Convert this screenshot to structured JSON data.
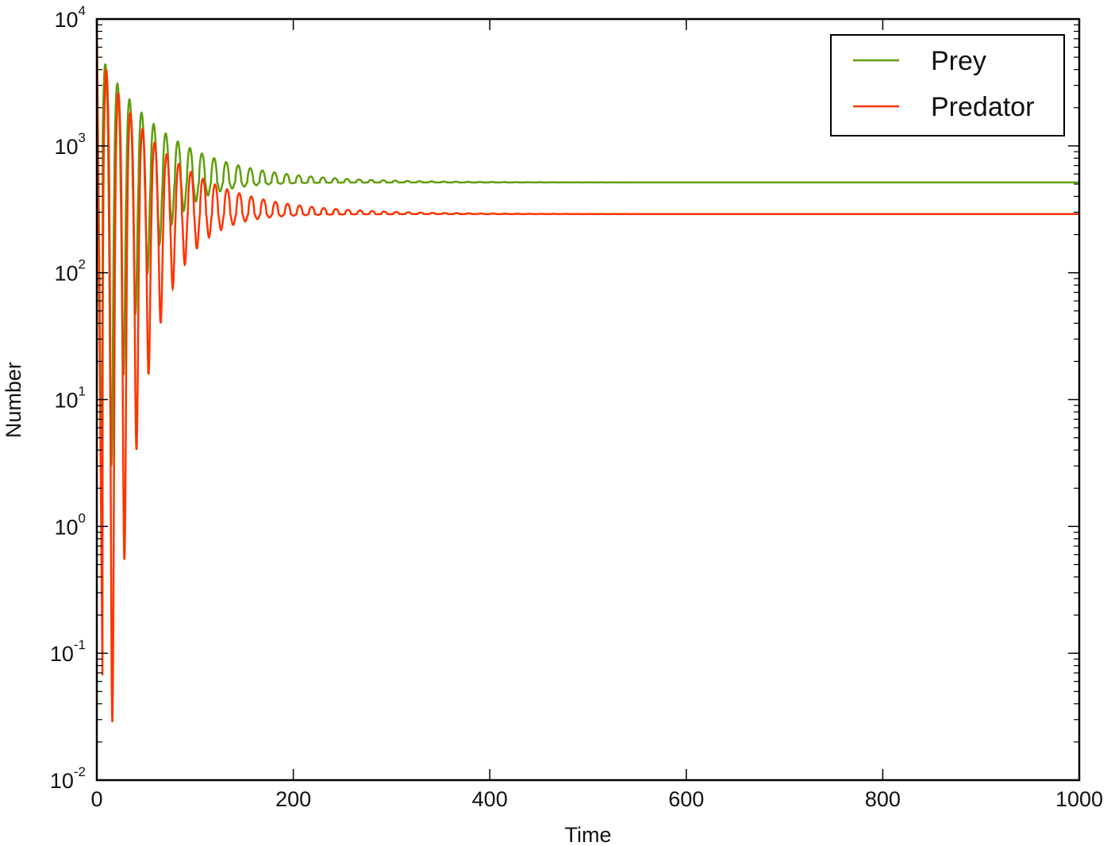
{
  "chart_data": {
    "type": "line",
    "title": "",
    "xlabel": "Time",
    "ylabel": "Number",
    "xlim": [
      0,
      1000
    ],
    "ylim": [
      0.01,
      10000
    ],
    "yscale": "log",
    "grid": false,
    "legend_position": "upper right",
    "x_ticks": [
      0,
      200,
      400,
      600,
      800,
      1000
    ],
    "x_tick_labels": [
      "0",
      "200",
      "400",
      "600",
      "800",
      "1000"
    ],
    "y_ticks": [
      {
        "base": "10",
        "exp": "4",
        "value": 10000
      },
      {
        "base": "10",
        "exp": "3",
        "value": 1000
      },
      {
        "base": "10",
        "exp": "2",
        "value": 100
      },
      {
        "base": "10",
        "exp": "1",
        "value": 10
      },
      {
        "base": "10",
        "exp": "0",
        "value": 1
      },
      {
        "base": "10",
        "exp": "-1",
        "value": 0.1
      },
      {
        "base": "10",
        "exp": "-2",
        "value": 0.01
      }
    ],
    "series": [
      {
        "name": "Prey",
        "color": "#5f9e0a",
        "equilibrium": 515,
        "initial_value": 10000,
        "first_trough": {
          "x": 3,
          "y": 0.3
        },
        "peaks": [
          {
            "x": 21,
            "y": 3100
          },
          {
            "x": 34,
            "y": 2600
          },
          {
            "x": 47,
            "y": 2100
          },
          {
            "x": 60,
            "y": 1800
          },
          {
            "x": 72,
            "y": 1550
          },
          {
            "x": 84,
            "y": 1300
          },
          {
            "x": 96,
            "y": 1150
          },
          {
            "x": 108,
            "y": 1000
          },
          {
            "x": 120,
            "y": 900
          }
        ],
        "troughs": [
          {
            "x": 3,
            "y": 0.3
          },
          {
            "x": 25,
            "y": 7.5
          },
          {
            "x": 39,
            "y": 19
          },
          {
            "x": 51,
            "y": 40
          },
          {
            "x": 63,
            "y": 70
          }
        ],
        "steady_state_after_x": 400
      },
      {
        "name": "Predator",
        "color": "#ff3300",
        "equilibrium": 290,
        "initial_value": 10000,
        "peaks": [
          {
            "x": 22,
            "y": 2600
          },
          {
            "x": 35,
            "y": 2000
          },
          {
            "x": 48,
            "y": 1500
          },
          {
            "x": 60,
            "y": 1200
          },
          {
            "x": 72,
            "y": 1000
          },
          {
            "x": 84,
            "y": 880
          },
          {
            "x": 96,
            "y": 780
          },
          {
            "x": 108,
            "y": 700
          },
          {
            "x": 120,
            "y": 630
          }
        ],
        "troughs": [
          {
            "x": 17,
            "y": 0.04
          },
          {
            "x": 31,
            "y": 0.5
          },
          {
            "x": 45,
            "y": 2.4
          },
          {
            "x": 57,
            "y": 6.8
          },
          {
            "x": 69,
            "y": 14
          },
          {
            "x": 81,
            "y": 23
          },
          {
            "x": 93,
            "y": 34
          },
          {
            "x": 105,
            "y": 48
          }
        ],
        "steady_state_after_x": 450
      }
    ],
    "oscillation_period": 12.3
  },
  "legend": {
    "items": [
      {
        "label": "Prey",
        "color": "#5f9e0a"
      },
      {
        "label": "Predator",
        "color": "#ff3300"
      }
    ]
  },
  "axes": {
    "xlabel": "Time",
    "ylabel": "Number"
  }
}
